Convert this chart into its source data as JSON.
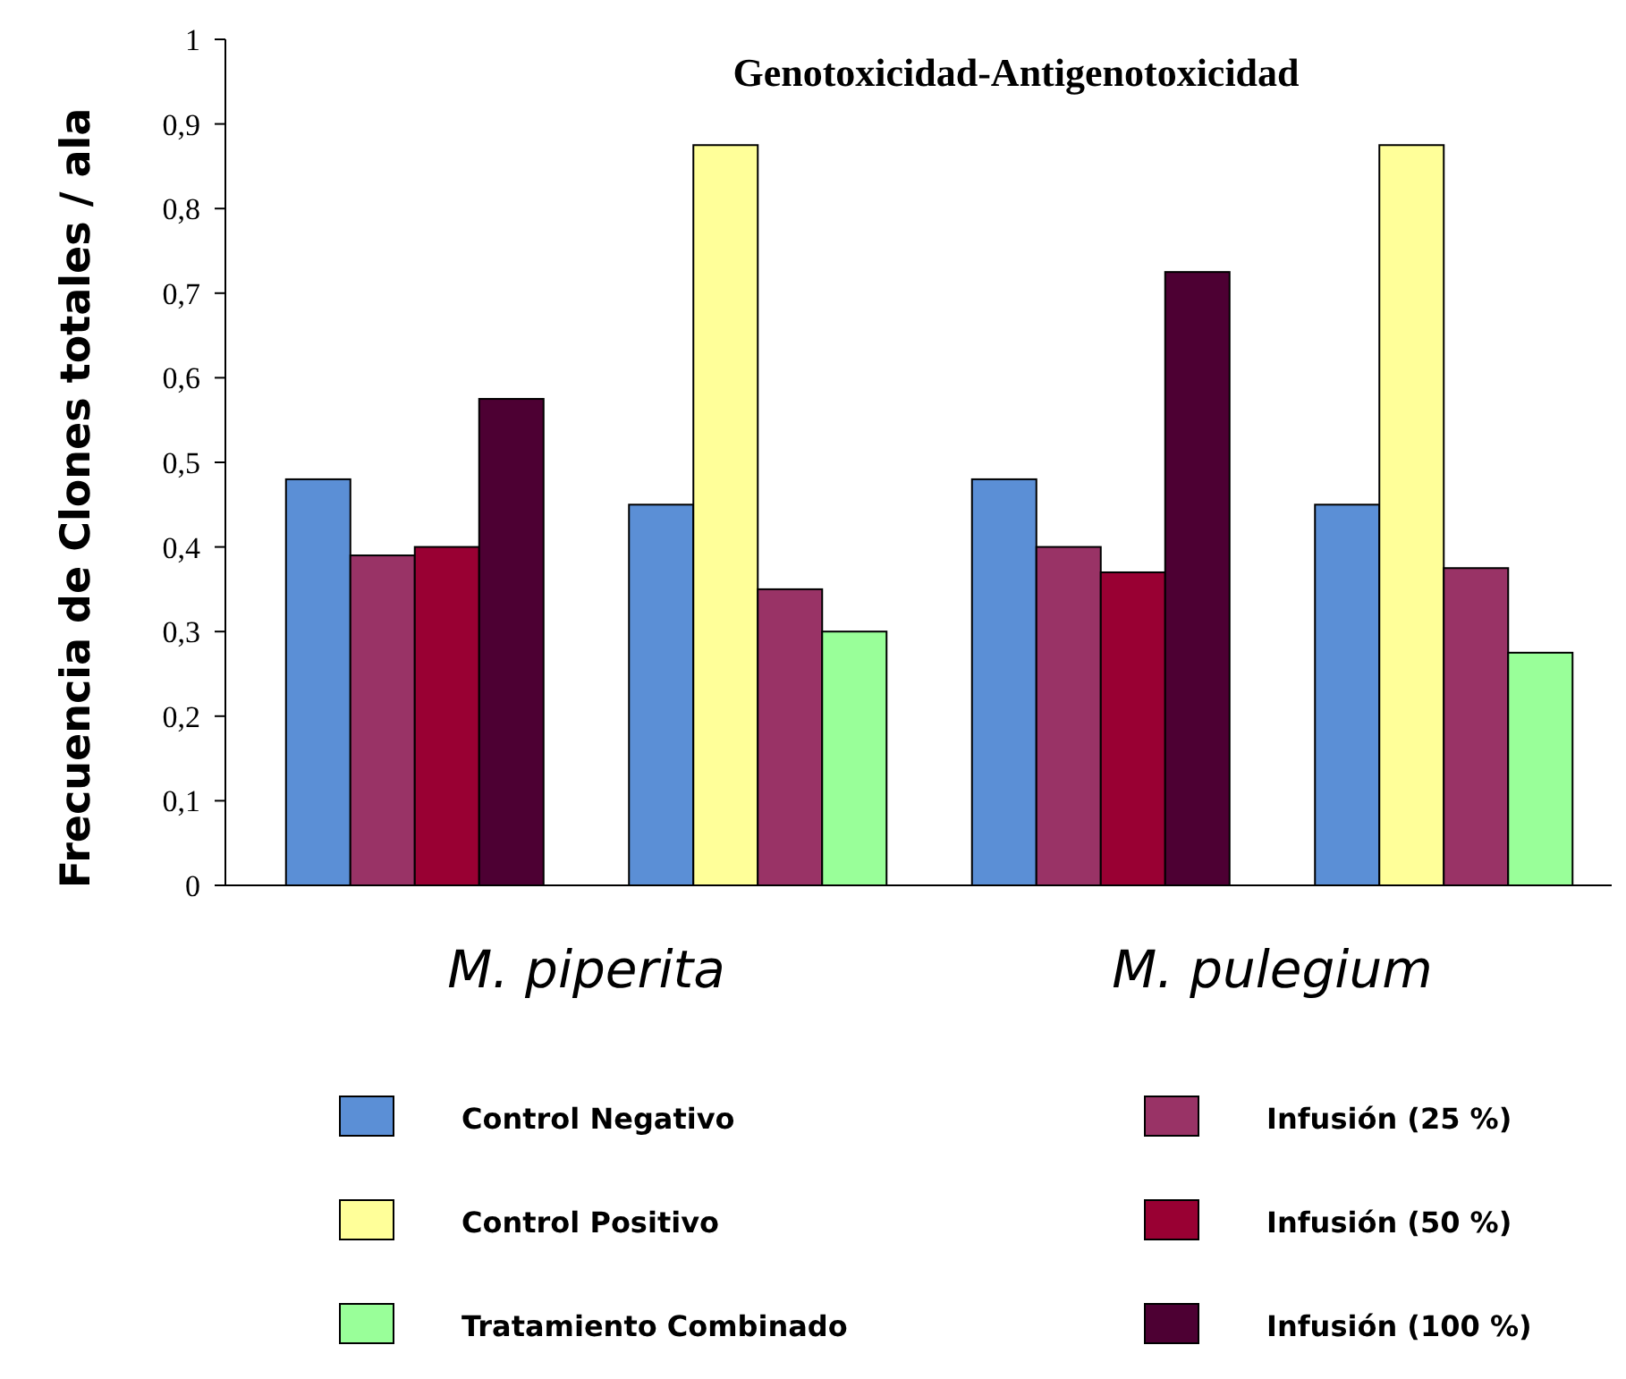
{
  "chart_data": {
    "type": "bar",
    "title": "Genotoxicidad-Antigenotoxicidad",
    "ylabel": "Frecuencia de Clones totales / ala",
    "categories": [
      null,
      null,
      null,
      null
    ],
    "annotations": [
      "M. piperita",
      "M. pulegium"
    ],
    "ylim": [
      0,
      1
    ],
    "yticks": [
      0,
      {
        "value": 0.1,
        "label": "0,1"
      },
      {
        "value": 0.2,
        "label": "0,2"
      },
      {
        "value": 0.3,
        "label": "0,3"
      },
      {
        "value": 0.4,
        "label": "0,4"
      },
      {
        "value": 0.5,
        "label": "0,5"
      },
      {
        "value": 0.6,
        "label": "0,6"
      },
      {
        "value": 0.7,
        "label": "0,7"
      },
      {
        "value": 0.8,
        "label": "0,8"
      },
      {
        "value": 0.9,
        "label": "0,9"
      },
      1
    ],
    "grid": false,
    "legend": "bottom",
    "series": [
      {
        "name": "Control Negativo",
        "color": "#5b8fd6",
        "values": [
          0.48,
          0.45,
          0.48,
          0.45
        ]
      },
      {
        "name": "Control Positivo",
        "color": "#ffff99",
        "values": [
          null,
          0.875,
          null,
          0.875
        ]
      },
      {
        "name": "Infusión (25 %)",
        "color": "#993366",
        "values": [
          0.39,
          0.35,
          0.4,
          0.375
        ]
      },
      {
        "name": "Infusión (50  %)",
        "color": "#990033",
        "values": [
          0.4,
          null,
          0.37,
          null
        ]
      },
      {
        "name": "Infusión (100 %)",
        "color": "#4d0033",
        "values": [
          0.575,
          null,
          0.725,
          null
        ]
      },
      {
        "name": "Tratamiento Combinado",
        "color": "#99ff99",
        "values": [
          null,
          0.3,
          null,
          0.275
        ]
      }
    ]
  }
}
